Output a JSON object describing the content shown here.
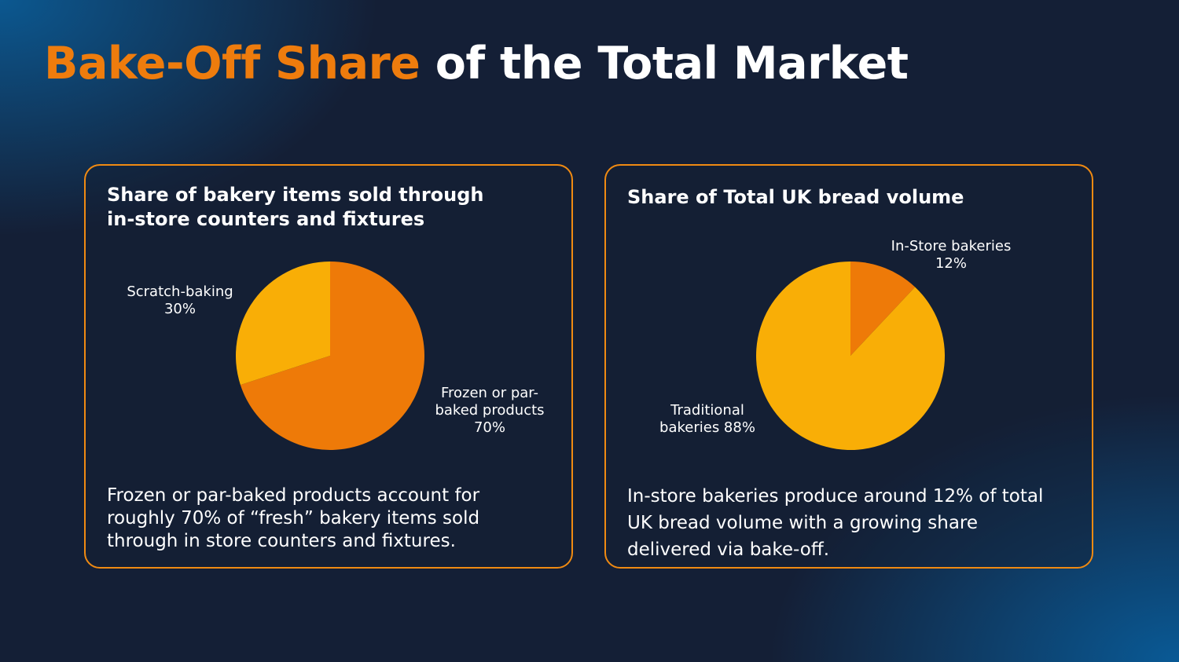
{
  "title": {
    "accent": "Bake-Off Share",
    "rest": "of the Total Market"
  },
  "colors": {
    "accent": "#ee7c0d",
    "slice_dark": "#ee7a08",
    "slice_light": "#f9ae06",
    "border": "#f08a12"
  },
  "cards": [
    {
      "heading": "Share of bakery items sold through in-store counters and fixtures",
      "slice_labels": [
        {
          "name": "Scratch-baking",
          "value": "30%"
        },
        {
          "name": "Frozen or par-baked products",
          "value": "70%"
        }
      ],
      "body": "Frozen or par-baked products account for roughly 70% of “fresh” bakery items sold through in store counters and fixtures."
    },
    {
      "heading": "Share of Total UK bread volume",
      "slice_labels": [
        {
          "name": "In-Store bakeries",
          "value": "12%"
        },
        {
          "name": "Traditional bakeries 88%",
          "value": ""
        }
      ],
      "body": "In-store bakeries produce around 12% of total UK bread volume with a growing share delivered via bake-off."
    }
  ],
  "chart_data": [
    {
      "type": "pie",
      "title": "Share of bakery items sold through in-store counters and fixtures",
      "categories": [
        "Frozen or par-baked products",
        "Scratch-baking"
      ],
      "values": [
        70,
        30
      ],
      "colors": [
        "#ee7a08",
        "#f9ae06"
      ]
    },
    {
      "type": "pie",
      "title": "Share of Total UK bread volume",
      "categories": [
        "In-Store bakeries",
        "Traditional bakeries"
      ],
      "values": [
        12,
        88
      ],
      "colors": [
        "#ee7a08",
        "#f9ae06"
      ]
    }
  ]
}
